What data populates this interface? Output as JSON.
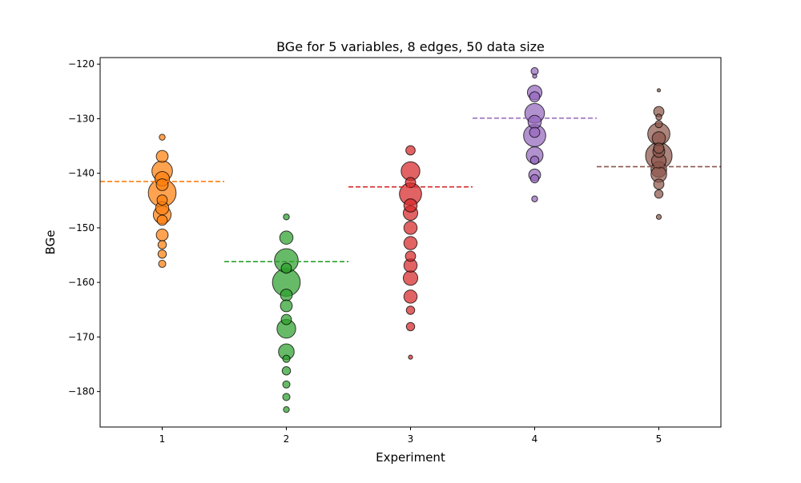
{
  "chart_data": {
    "type": "scatter",
    "title": "BGe for 5 variables, 8 edges, 50 data size",
    "xlabel": "Experiment",
    "ylabel": "BGe",
    "xlim": [
      0.5,
      5.5
    ],
    "ylim": [
      -186.5,
      -118.8
    ],
    "xticks": [
      1,
      2,
      3,
      4,
      5
    ],
    "yticks": [
      -180,
      -170,
      -160,
      -150,
      -140,
      -130,
      -120
    ],
    "grid": false,
    "legend": "none",
    "series": [
      {
        "x": 1,
        "color": "#ff7f0e",
        "mean": -141.5,
        "points": [
          {
            "y": -133.4,
            "weight": 1
          },
          {
            "y": -136.9,
            "weight": 4
          },
          {
            "y": -139.6,
            "weight": 12
          },
          {
            "y": -141.0,
            "weight": 6
          },
          {
            "y": -142.1,
            "weight": 4
          },
          {
            "y": -143.6,
            "weight": 22
          },
          {
            "y": -144.9,
            "weight": 3
          },
          {
            "y": -146.4,
            "weight": 5
          },
          {
            "y": -147.6,
            "weight": 9
          },
          {
            "y": -148.6,
            "weight": 3
          },
          {
            "y": -151.3,
            "weight": 4
          },
          {
            "y": -153.1,
            "weight": 2
          },
          {
            "y": -154.8,
            "weight": 2
          },
          {
            "y": -156.6,
            "weight": 1.5
          }
        ]
      },
      {
        "x": 2,
        "color": "#2ca02c",
        "mean": -156.2,
        "points": [
          {
            "y": -148.0,
            "weight": 1
          },
          {
            "y": -151.8,
            "weight": 5
          },
          {
            "y": -156.0,
            "weight": 16
          },
          {
            "y": -157.4,
            "weight": 3
          },
          {
            "y": -160.0,
            "weight": 22
          },
          {
            "y": -162.3,
            "weight": 4
          },
          {
            "y": -164.3,
            "weight": 4
          },
          {
            "y": -166.8,
            "weight": 3
          },
          {
            "y": -168.5,
            "weight": 10
          },
          {
            "y": -172.7,
            "weight": 7
          },
          {
            "y": -174.0,
            "weight": 1.5
          },
          {
            "y": -176.2,
            "weight": 2
          },
          {
            "y": -178.7,
            "weight": 1.5
          },
          {
            "y": -181.0,
            "weight": 1.5
          },
          {
            "y": -183.3,
            "weight": 1
          }
        ]
      },
      {
        "x": 3,
        "color": "#d62728",
        "mean": -142.5,
        "points": [
          {
            "y": -135.8,
            "weight": 2.5
          },
          {
            "y": -139.6,
            "weight": 10
          },
          {
            "y": -141.7,
            "weight": 3
          },
          {
            "y": -143.8,
            "weight": 14
          },
          {
            "y": -145.9,
            "weight": 5
          },
          {
            "y": -147.3,
            "weight": 6
          },
          {
            "y": -150.0,
            "weight": 5
          },
          {
            "y": -152.8,
            "weight": 5
          },
          {
            "y": -155.2,
            "weight": 3
          },
          {
            "y": -156.9,
            "weight": 5
          },
          {
            "y": -159.2,
            "weight": 6
          },
          {
            "y": -162.6,
            "weight": 5
          },
          {
            "y": -165.1,
            "weight": 2
          },
          {
            "y": -168.1,
            "weight": 2
          },
          {
            "y": -173.7,
            "weight": 0.5
          }
        ]
      },
      {
        "x": 4,
        "color": "#9467bd",
        "mean": -129.9,
        "points": [
          {
            "y": -121.3,
            "weight": 1.5
          },
          {
            "y": -122.2,
            "weight": 0.5
          },
          {
            "y": -125.2,
            "weight": 6
          },
          {
            "y": -126.0,
            "weight": 3
          },
          {
            "y": -129.0,
            "weight": 11
          },
          {
            "y": -130.6,
            "weight": 5
          },
          {
            "y": -132.5,
            "weight": 3
          },
          {
            "y": -133.1,
            "weight": 14
          },
          {
            "y": -136.7,
            "weight": 8
          },
          {
            "y": -137.6,
            "weight": 2
          },
          {
            "y": -140.3,
            "weight": 4
          },
          {
            "y": -141.0,
            "weight": 2
          },
          {
            "y": -144.7,
            "weight": 1
          }
        ]
      },
      {
        "x": 5,
        "color": "#8c564b",
        "mean": -138.8,
        "points": [
          {
            "y": -124.8,
            "weight": 0.3
          },
          {
            "y": -128.7,
            "weight": 3
          },
          {
            "y": -129.7,
            "weight": 1
          },
          {
            "y": -131.0,
            "weight": 1.5
          },
          {
            "y": -132.8,
            "weight": 14
          },
          {
            "y": -133.6,
            "weight": 5
          },
          {
            "y": -135.4,
            "weight": 3
          },
          {
            "y": -136.0,
            "weight": 4
          },
          {
            "y": -136.8,
            "weight": 20
          },
          {
            "y": -137.7,
            "weight": 6
          },
          {
            "y": -139.3,
            "weight": 7
          },
          {
            "y": -140.2,
            "weight": 7
          },
          {
            "y": -142.0,
            "weight": 3
          },
          {
            "y": -143.8,
            "weight": 2
          },
          {
            "y": -148.0,
            "weight": 0.7
          }
        ]
      }
    ]
  }
}
